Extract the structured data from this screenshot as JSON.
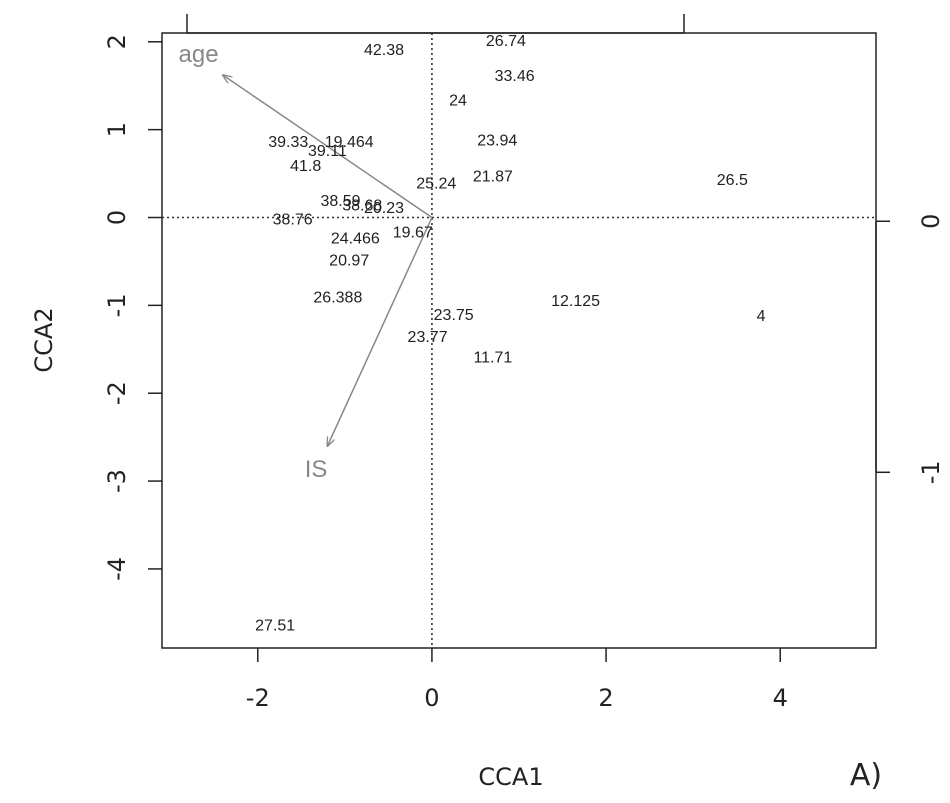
{
  "chart_data": {
    "type": "scatter",
    "xlabel": "CCA1",
    "ylabel": "CCA2",
    "panel_label": "A)",
    "xlim": [
      -3.1,
      5.1
    ],
    "ylim": [
      -4.9,
      2.1
    ],
    "x_ticks": [
      -2,
      0,
      2,
      4
    ],
    "x_tick_labels": [
      "-2",
      "0",
      "2",
      "4"
    ],
    "y_ticks": [
      2,
      1,
      0,
      -1,
      -2,
      -3,
      -4
    ],
    "y_tick_labels": [
      "2",
      "1",
      "0",
      "-1",
      "-2",
      "-3",
      "-4"
    ],
    "right_axis_ticks": [
      0,
      -1
    ],
    "right_axis_tick_labels": [
      "0",
      "-1"
    ],
    "right_axis_ylim": [
      -1.7,
      0.75
    ],
    "reference_lines": {
      "x": 0,
      "y": 0,
      "style": "dotted"
    },
    "points": [
      {
        "label": "42.38",
        "x": -0.55,
        "y": 1.9
      },
      {
        "label": "26.74",
        "x": 0.85,
        "y": 2.0
      },
      {
        "label": "33.46",
        "x": 0.95,
        "y": 1.6
      },
      {
        "label": "24",
        "x": 0.3,
        "y": 1.32
      },
      {
        "label": "39.33",
        "x": -1.65,
        "y": 0.85
      },
      {
        "label": "19.464",
        "x": -0.95,
        "y": 0.85
      },
      {
        "label": "39.11",
        "x": -1.2,
        "y": 0.75
      },
      {
        "label": "41.8",
        "x": -1.45,
        "y": 0.58
      },
      {
        "label": "23.94",
        "x": 0.75,
        "y": 0.87
      },
      {
        "label": "25.24",
        "x": 0.05,
        "y": 0.38
      },
      {
        "label": "21.87",
        "x": 0.7,
        "y": 0.46
      },
      {
        "label": "26.5",
        "x": 3.45,
        "y": 0.42
      },
      {
        "label": "38.59",
        "x": -1.05,
        "y": 0.18
      },
      {
        "label": "38.68",
        "x": -0.8,
        "y": 0.13
      },
      {
        "label": "20.23",
        "x": -0.55,
        "y": 0.1
      },
      {
        "label": "38.76",
        "x": -1.6,
        "y": -0.03
      },
      {
        "label": "24.466",
        "x": -0.88,
        "y": -0.25
      },
      {
        "label": "19.67",
        "x": -0.22,
        "y": -0.18
      },
      {
        "label": "20.97",
        "x": -0.95,
        "y": -0.5
      },
      {
        "label": "26.388",
        "x": -1.08,
        "y": -0.92
      },
      {
        "label": "12.125",
        "x": 1.65,
        "y": -0.96
      },
      {
        "label": "4",
        "x": 3.78,
        "y": -1.13
      },
      {
        "label": "23.75",
        "x": 0.25,
        "y": -1.12
      },
      {
        "label": "23.77",
        "x": -0.05,
        "y": -1.37
      },
      {
        "label": "11.71",
        "x": 0.7,
        "y": -1.6
      },
      {
        "label": "27.51",
        "x": -1.8,
        "y": -4.65
      }
    ],
    "vectors": [
      {
        "name": "age",
        "x": -2.4,
        "y": 1.62,
        "label_x": -2.68,
        "label_y": 1.84
      },
      {
        "name": "IS",
        "x": -1.2,
        "y": -2.6,
        "label_x": -1.33,
        "label_y": -2.88
      }
    ],
    "colors": {
      "axis": "#222222",
      "vector": "#888888",
      "points": "#222222"
    }
  }
}
